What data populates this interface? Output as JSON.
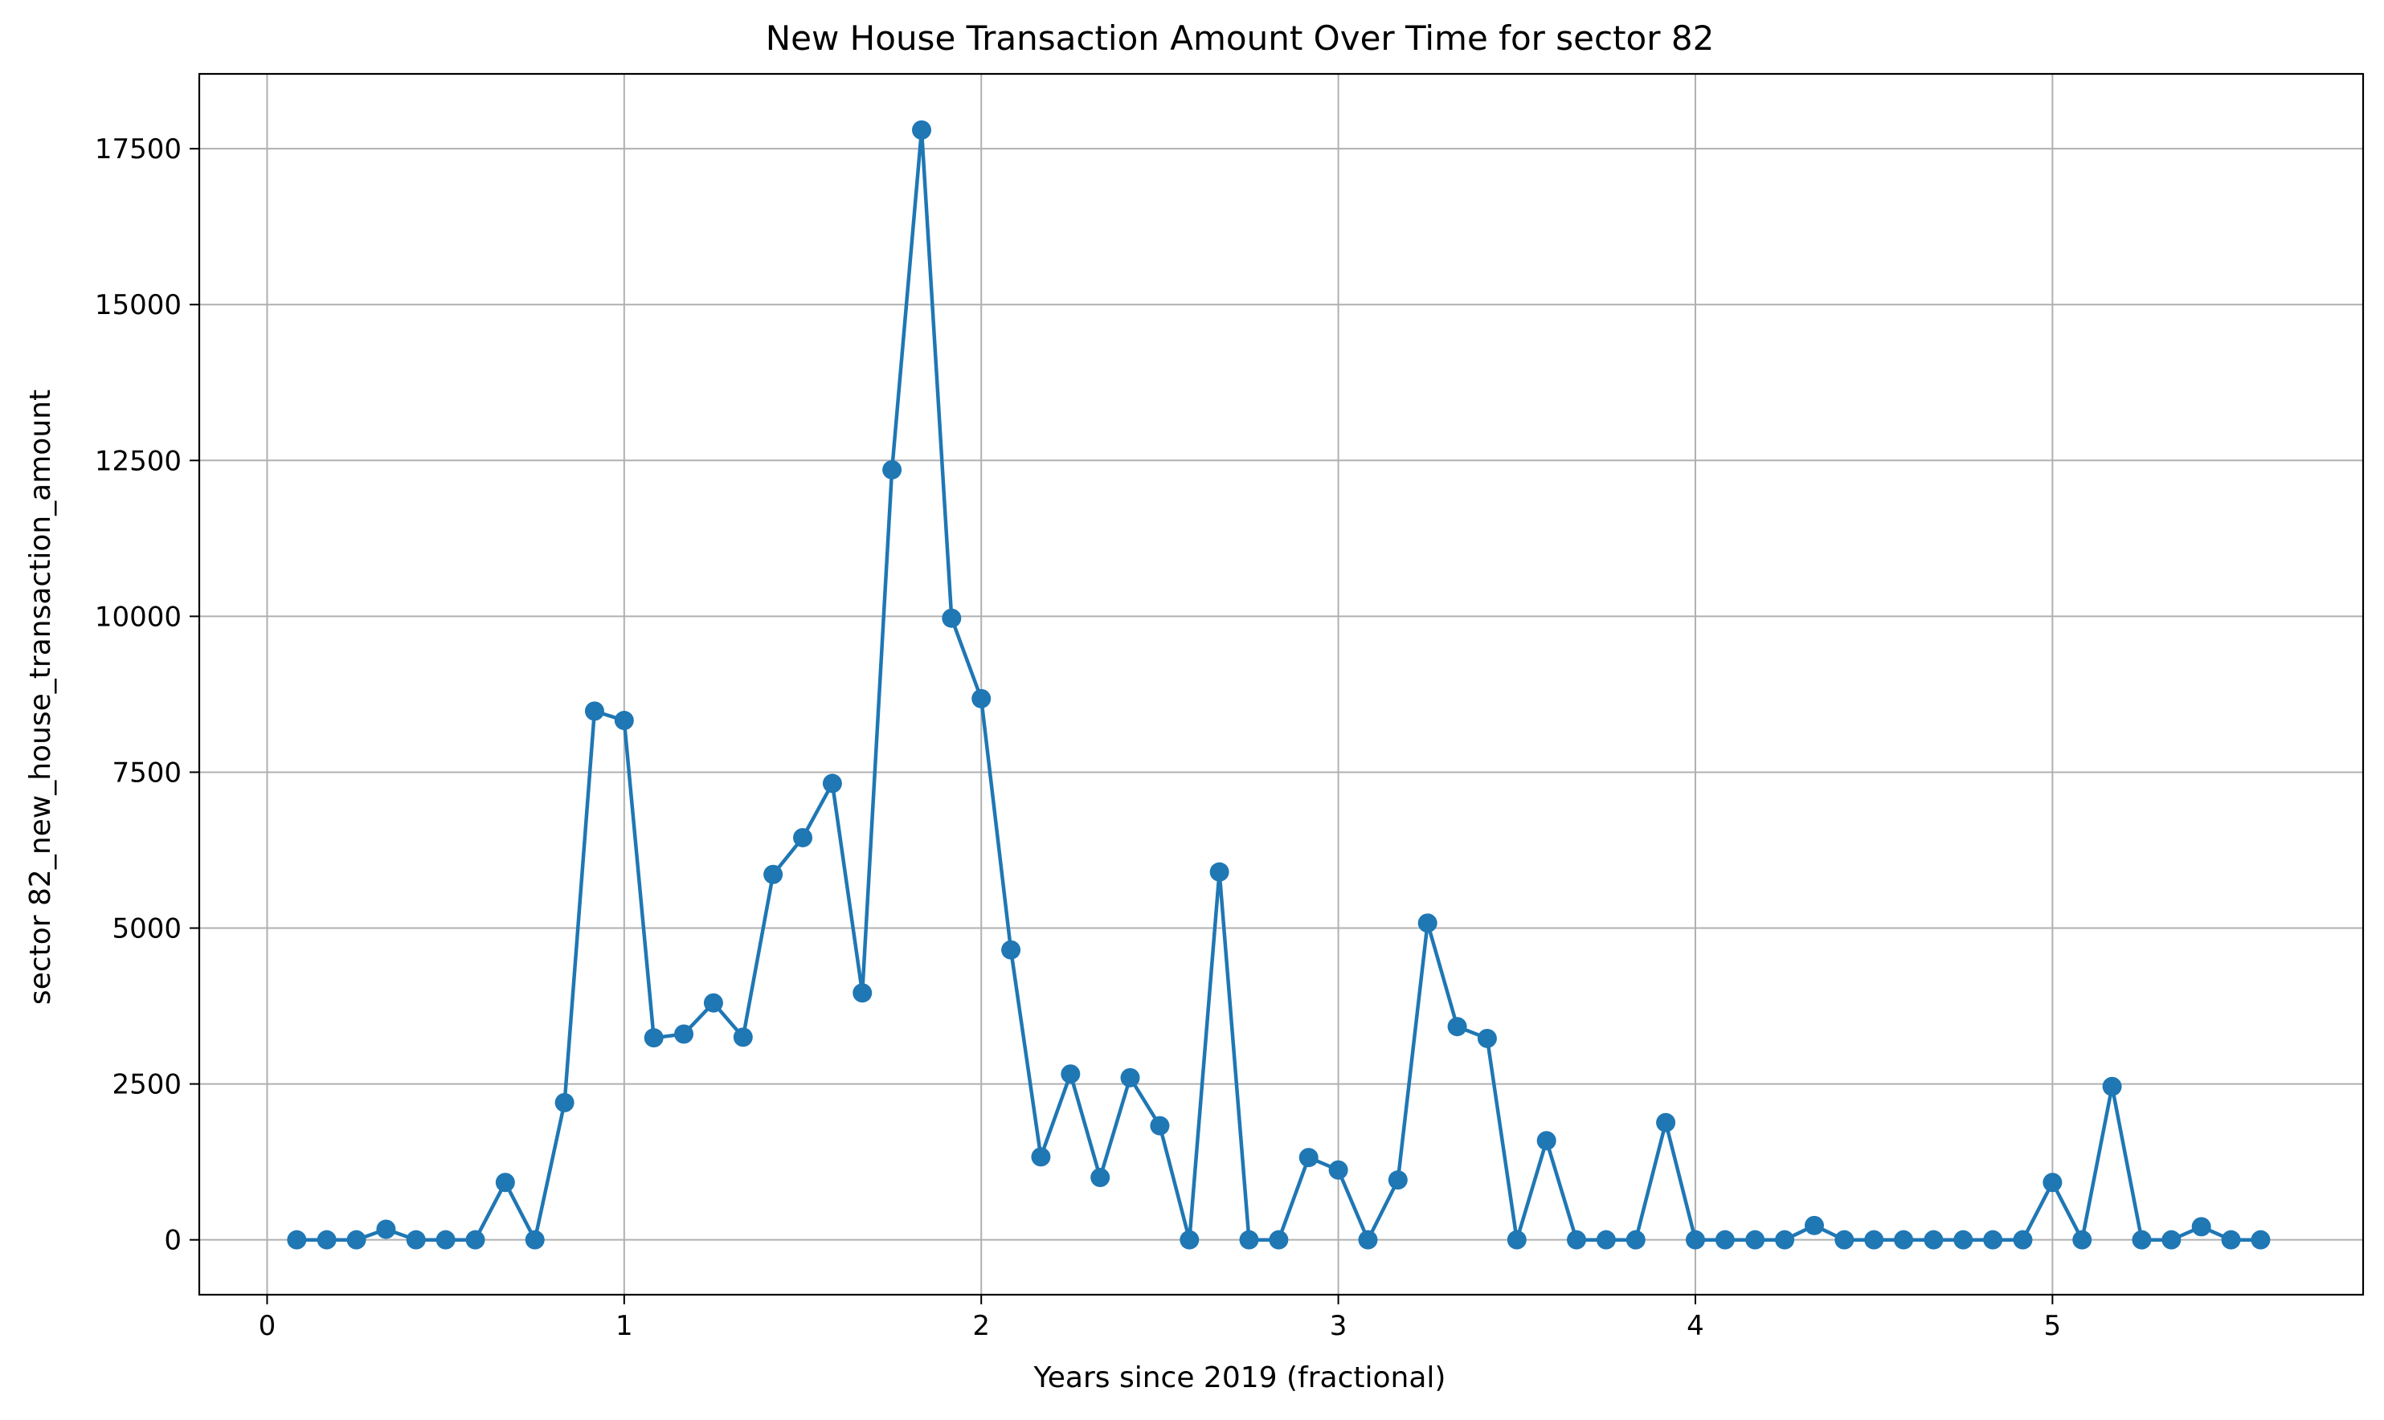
{
  "chart_data": {
    "type": "line",
    "title": "New House Transaction Amount Over Time for sector 82",
    "xlabel": "Years since 2019 (fractional)",
    "ylabel": "sector 82_new_house_transaction_amount",
    "xlim": [
      -0.19,
      5.87
    ],
    "ylim": [
      -880,
      18700
    ],
    "xticks": [
      0,
      1,
      2,
      3,
      4,
      5
    ],
    "xtick_labels": [
      "0",
      "1",
      "2",
      "3",
      "4",
      "5"
    ],
    "yticks": [
      0,
      2500,
      5000,
      7500,
      10000,
      12500,
      15000,
      17500
    ],
    "ytick_labels": [
      "0",
      "2500",
      "5000",
      "7500",
      "10000",
      "12500",
      "15000",
      "17500"
    ],
    "grid": true,
    "series": [
      {
        "color": "#1f77b4",
        "marker": "circle",
        "x": [
          0.083,
          0.167,
          0.25,
          0.333,
          0.417,
          0.5,
          0.583,
          0.667,
          0.75,
          0.833,
          0.917,
          1.0,
          1.083,
          1.167,
          1.25,
          1.333,
          1.417,
          1.5,
          1.583,
          1.667,
          1.75,
          1.833,
          1.917,
          2.0,
          2.083,
          2.167,
          2.25,
          2.333,
          2.417,
          2.5,
          2.583,
          2.667,
          2.75,
          2.833,
          2.917,
          3.0,
          3.083,
          3.167,
          3.25,
          3.333,
          3.417,
          3.5,
          3.583,
          3.667,
          3.75,
          3.833,
          3.917,
          4.0,
          4.083,
          4.167,
          4.25,
          4.333,
          4.417,
          4.5,
          4.583,
          4.667,
          4.75,
          4.833,
          4.917,
          5.0,
          5.083,
          5.167,
          5.25,
          5.333,
          5.417,
          5.5,
          5.583
        ],
        "y": [
          0,
          0,
          0,
          170,
          0,
          0,
          0,
          920,
          0,
          2200,
          8480,
          8330,
          3240,
          3300,
          3800,
          3250,
          5860,
          6450,
          7320,
          3960,
          12350,
          17800,
          9970,
          8680,
          4650,
          1330,
          2660,
          1000,
          2600,
          1830,
          0,
          5900,
          0,
          0,
          1320,
          1120,
          0,
          960,
          5080,
          3420,
          3230,
          0,
          1590,
          0,
          0,
          0,
          1880,
          0,
          0,
          0,
          0,
          230,
          0,
          0,
          0,
          0,
          0,
          0,
          0,
          920,
          0,
          2460,
          0,
          0,
          210,
          0,
          0
        ]
      }
    ]
  }
}
